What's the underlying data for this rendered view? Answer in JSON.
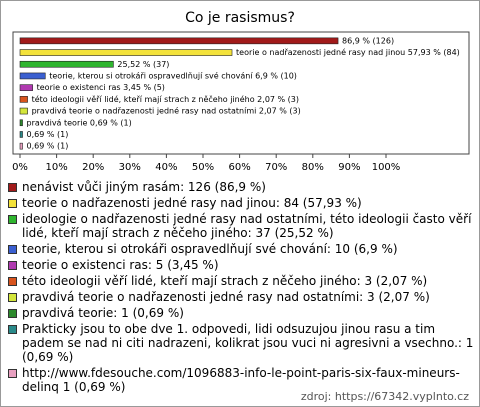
{
  "chart_data": {
    "type": "bar",
    "orientation": "horizontal",
    "title": "Co je rasismus?",
    "categories": [
      "nenávist vůči jiným rasám: 126 (86,9 %)",
      "teorie o nadřazenosti jedné rasy nad jinou: 84 (57,93 %)",
      "ideologie o nadřazenosti jedné rasy nad ostatními, této ideologii často věří lidé, kteří mají strach z něčeho jiného: 37 (25,52 %)",
      "teorie, kterou si otrokáři ospravedlňují své chování: 10 (6,9 %)",
      "teorie o existenci ras: 5 (3,45 %)",
      "této ideologii věří lidé, kteří mají strach z něčeho jiného: 3 (2,07 %)",
      "pravdivá teorie o nadřazenosti jedné rasy nad ostatními: 3 (2,07 %)",
      "pravdivá teorie: 1 (0,69 %)",
      "Prakticky jsou to obe dve 1. odpovedi, lidi odsuzujou jinou rasu a tim padem se nad ni citi nadrazeni, kolikrat jsou vuci ni agresivni a vsechno.: 1 (0,69 %)",
      "http://www.fdesouche.com/1096883-info-le-point-paris-six-faux-mineurs-delinq 1 (0,69 %)"
    ],
    "values": [
      86.9,
      57.93,
      25.52,
      6.9,
      3.45,
      2.07,
      2.07,
      0.69,
      0.69,
      0.69
    ],
    "value_labels": [
      "86,9 % (126)",
      "teorie o nadřazenosti jedné rasy nad jinou 57,93 % (84)",
      "25,52 % (37)",
      "teorie, kterou si otrokáři ospravedlňují své chování 6,9 % (10)",
      "teorie o existenci ras 3,45 % (5)",
      "této ideologii věří lidé, kteří mají strach z něčeho jiného 2,07 % (3)",
      "pravdivá teorie o nadřazenosti jedné rasy nad ostatními 2,07 % (3)",
      "pravdivá teorie 0,69 % (1)",
      "0,69 % (1)",
      "0,69 % (1)"
    ],
    "colors": [
      "#a11a1a",
      "#f3e23a",
      "#2fb52f",
      "#3a5fd0",
      "#b03ab0",
      "#d8541e",
      "#d4e63c",
      "#2d8a2d",
      "#2a8a8a",
      "#e8a0c0"
    ],
    "xlim": [
      0,
      100
    ],
    "xticks": [
      {
        "value": 0,
        "label": "0%"
      },
      {
        "value": 10,
        "label": "10%"
      },
      {
        "value": 20,
        "label": "20%"
      },
      {
        "value": 30,
        "label": "30%"
      },
      {
        "value": 40,
        "label": "40%"
      },
      {
        "value": 50,
        "label": "50%"
      },
      {
        "value": 60,
        "label": "60%"
      },
      {
        "value": 70,
        "label": "70%"
      },
      {
        "value": 80,
        "label": "80%"
      },
      {
        "value": 90,
        "label": "90%"
      },
      {
        "value": 100,
        "label": "100%"
      }
    ],
    "source": "zdroj: https://67342.vyplnto.cz"
  }
}
